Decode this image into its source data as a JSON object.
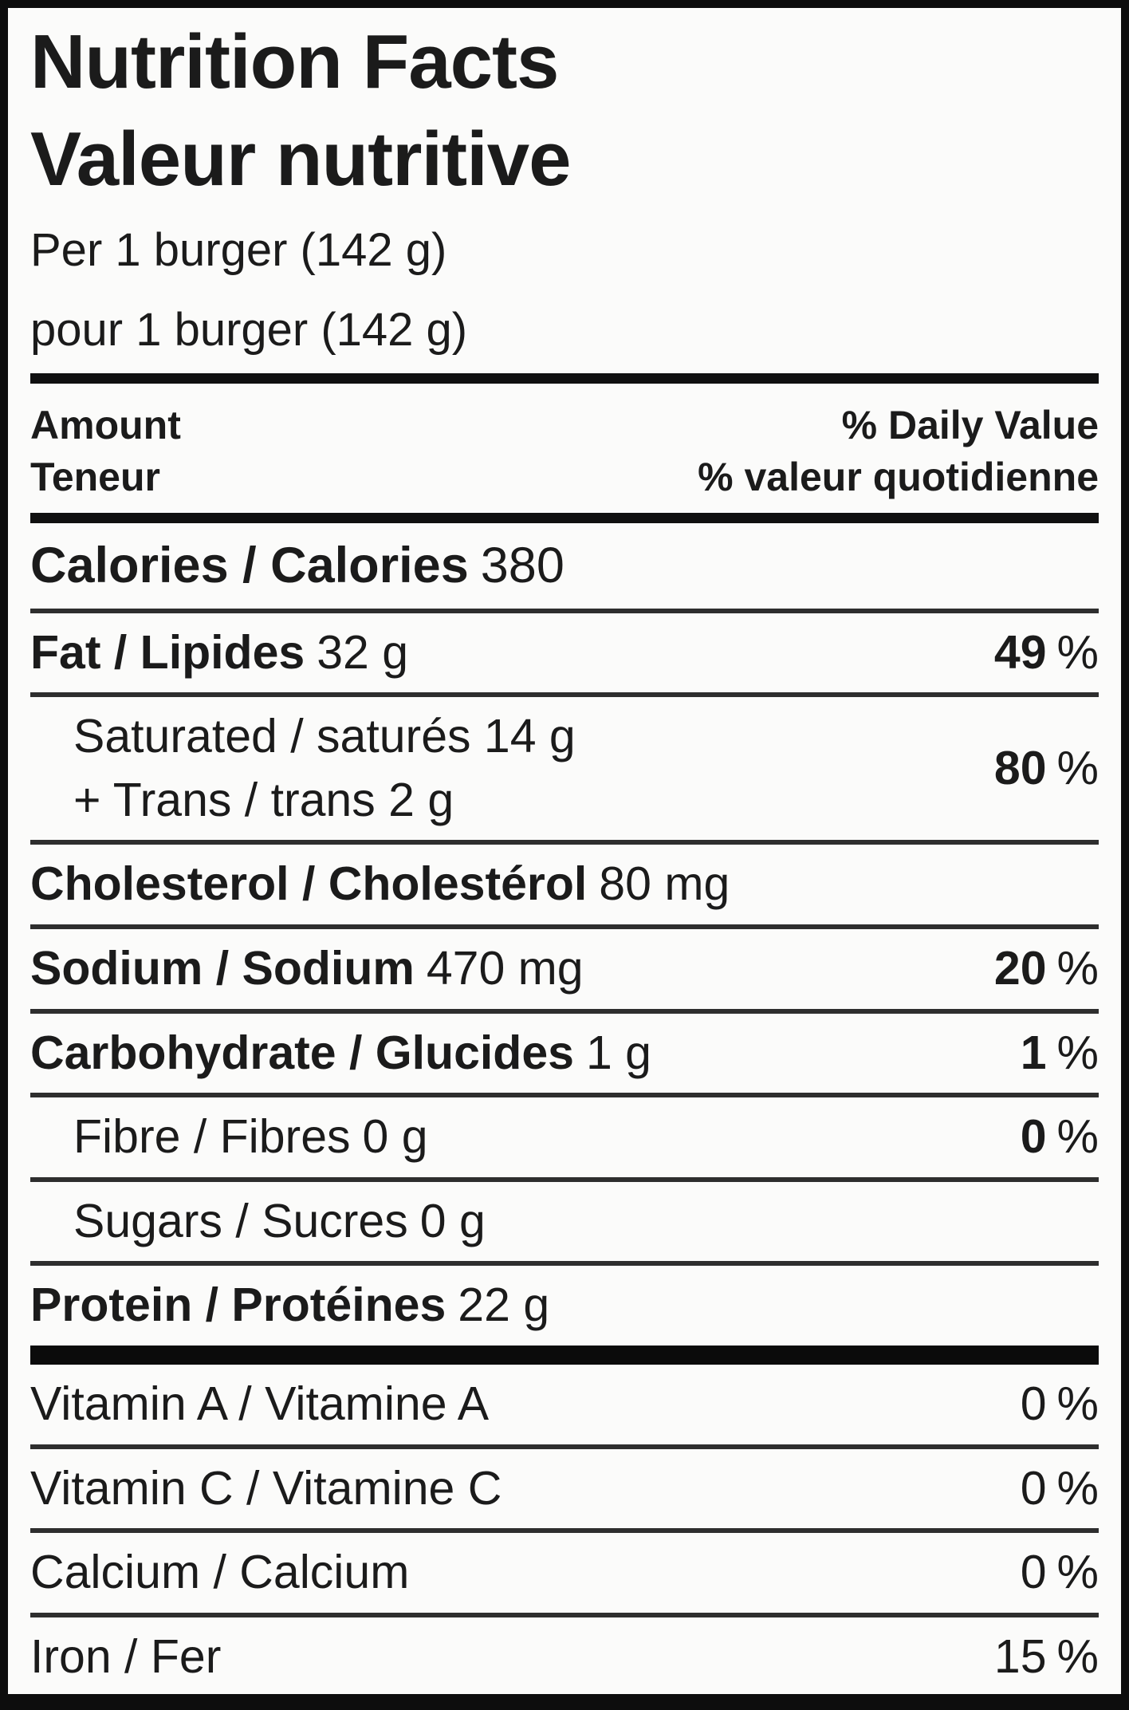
{
  "label": {
    "title_en": "Nutrition Facts",
    "title_fr": "Valeur nutritive",
    "serving_en": "Per 1 burger (142 g)",
    "serving_fr": "pour 1 burger (142 g)",
    "header": {
      "amount_en": "Amount",
      "amount_fr": "Teneur",
      "daily_value_en": "% Daily Value",
      "daily_value_fr": "% valeur quotidienne"
    },
    "calories": {
      "name": "Calories / Calories",
      "value": "380"
    },
    "nutrients": [
      {
        "name": "Fat / Lipides",
        "amount": "32 g",
        "dv": "49",
        "pct": "%"
      },
      {
        "line1": "Saturated / saturés 14 g",
        "line2": "+ Trans / trans 2 g",
        "dv": "80",
        "pct": "%"
      },
      {
        "name": "Cholesterol / Cholestérol",
        "amount": "80 mg"
      },
      {
        "name": "Sodium / Sodium",
        "amount": "470 mg",
        "dv": "20",
        "pct": "%"
      },
      {
        "name": "Carbohydrate / Glucides",
        "amount": "1 g",
        "dv": "1",
        "pct": "%"
      },
      {
        "name": "Fibre / Fibres",
        "amount": "0 g",
        "dv": "0",
        "pct": "%"
      },
      {
        "name": "Sugars / Sucres",
        "amount": "0 g"
      },
      {
        "name": "Protein / Protéines",
        "amount": "22 g"
      }
    ],
    "micronutrients": [
      {
        "name": "Vitamin A / Vitamine A",
        "dv": "0",
        "pct": "%"
      },
      {
        "name": "Vitamin C / Vitamine C",
        "dv": "0",
        "pct": "%"
      },
      {
        "name": "Calcium / Calcium",
        "dv": "0",
        "pct": "%"
      },
      {
        "name": "Iron / Fer",
        "dv": "15",
        "pct": "%"
      }
    ],
    "colors": {
      "text": "#1b1b1b",
      "rule": "#2e2e2e",
      "thick_bar": "#0b0b0b",
      "border": "#0d0d0d",
      "background": "#fbfbfa"
    }
  }
}
